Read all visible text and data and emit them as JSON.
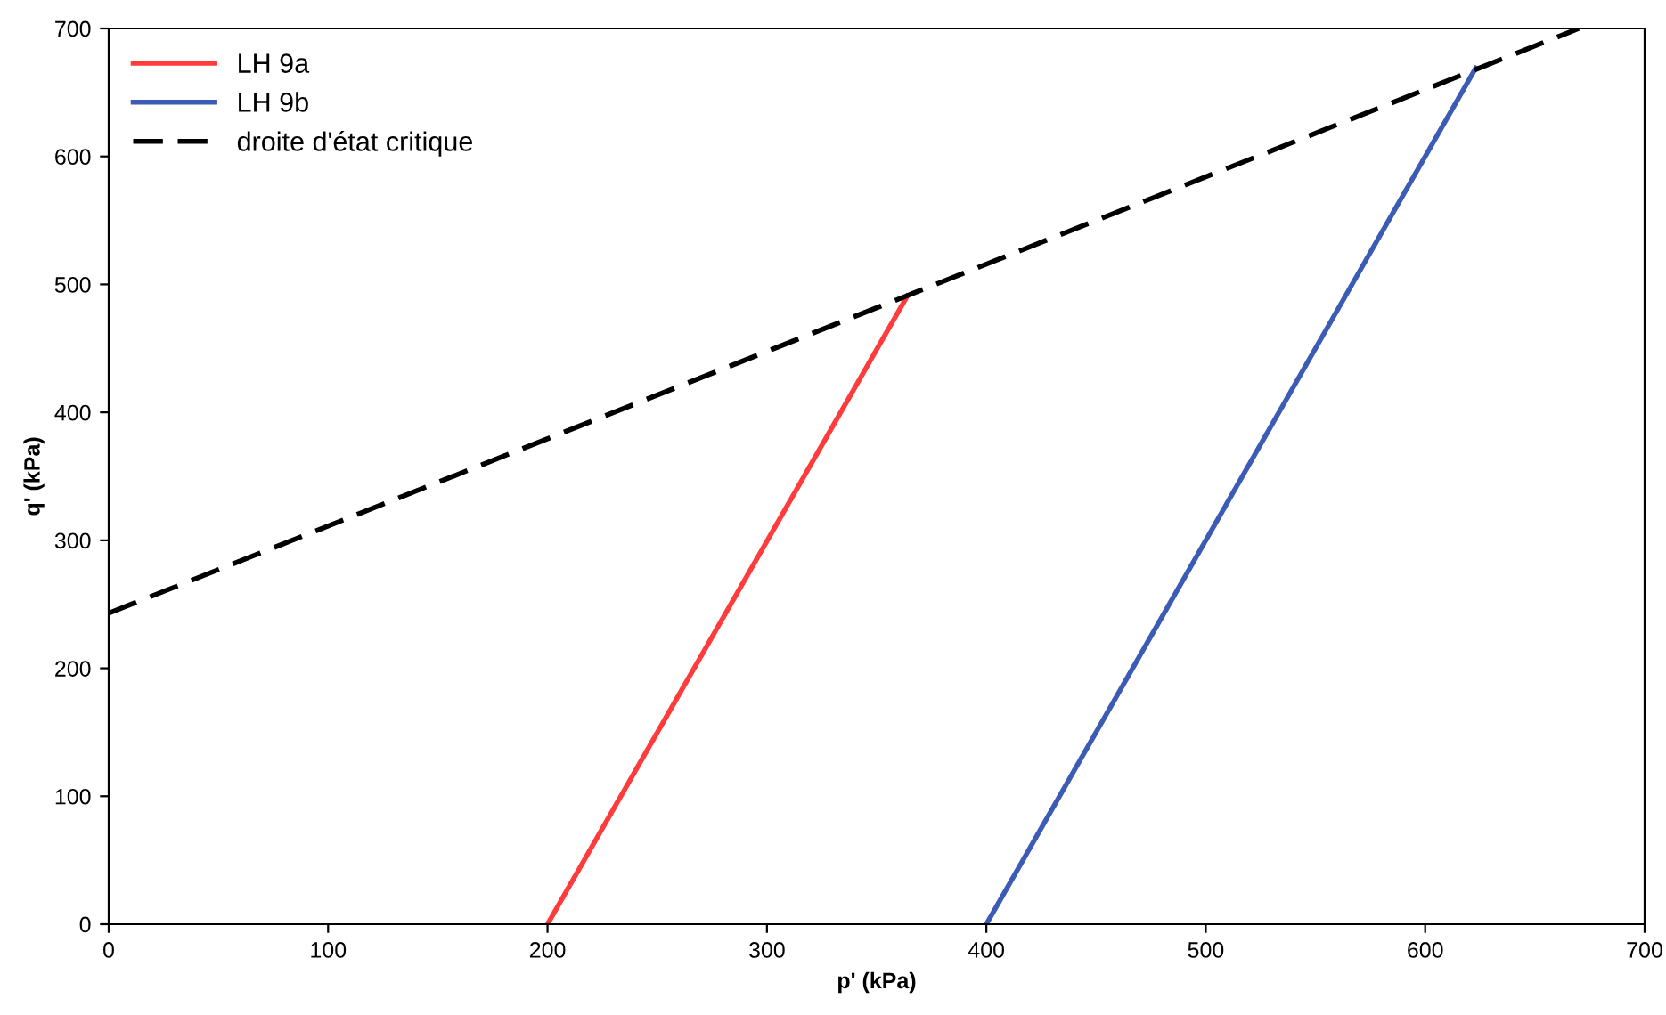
{
  "chart_data": {
    "type": "line",
    "xlabel": "p' (kPa)",
    "ylabel": "q' (kPa)",
    "xlim": [
      0,
      700
    ],
    "ylim": [
      0,
      700
    ],
    "xticks": [
      0,
      100,
      200,
      300,
      400,
      500,
      600,
      700
    ],
    "yticks": [
      0,
      100,
      200,
      300,
      400,
      500,
      600,
      700
    ],
    "grid": false,
    "legend": "top left",
    "marker": "none",
    "series": [
      {
        "name": "LH 9a",
        "color": "#ff3b3b",
        "x": [
          200,
          364
        ],
        "values": [
          0,
          491
        ],
        "line_style": "solid"
      },
      {
        "name": "LH 9b",
        "color": "#3b5bb5",
        "x": [
          400,
          623
        ],
        "values": [
          0,
          669
        ],
        "line_style": "solid"
      },
      {
        "name": "droite d'état critique",
        "color": "#000000",
        "x": [
          0,
          670
        ],
        "values": [
          243,
          700
        ],
        "line_style": "dashed"
      }
    ]
  }
}
